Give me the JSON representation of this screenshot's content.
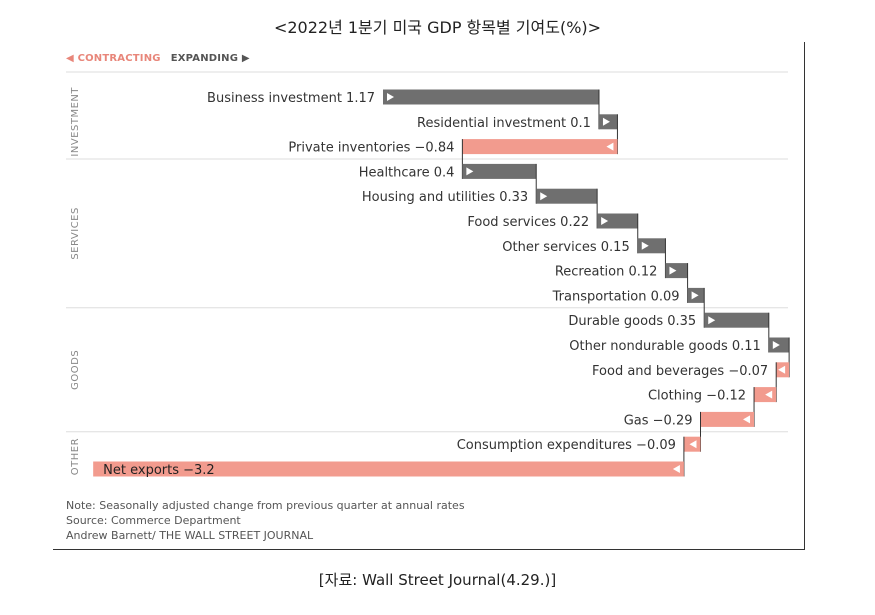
{
  "title": "<2022년 1분기 미국 GDP 항목별 기여도(%)>",
  "legend": {
    "contracting": "◀ CONTRACTING",
    "expanding": "EXPANDING ▶"
  },
  "colors": {
    "positive": "#6f6f6f",
    "negative": "#f29b8e",
    "divider": "#dddddd",
    "text": "#333333",
    "group_label": "#888888"
  },
  "chart_data": {
    "type": "waterfall",
    "title": "<2022년 1분기 미국 GDP 항목별 기여도(%)>",
    "axis_range": [
      -0.6,
      1.5
    ],
    "groups": [
      {
        "name": "INVESTMENT",
        "items": [
          {
            "label": "Business investment 1.17",
            "value": 1.17
          },
          {
            "label": "Residential investment 0.1",
            "value": 0.1
          },
          {
            "label": "Private inventories −0.84",
            "value": -0.84
          }
        ]
      },
      {
        "name": "SERVICES",
        "items": [
          {
            "label": "Healthcare 0.4",
            "value": 0.4
          },
          {
            "label": "Housing and utilities 0.33",
            "value": 0.33
          },
          {
            "label": "Food services 0.22",
            "value": 0.22
          },
          {
            "label": "Other services 0.15",
            "value": 0.15
          },
          {
            "label": "Recreation 0.12",
            "value": 0.12
          },
          {
            "label": "Transportation 0.09",
            "value": 0.09
          }
        ]
      },
      {
        "name": "GOODS",
        "items": [
          {
            "label": "Durable goods 0.35",
            "value": 0.35
          },
          {
            "label": "Other nondurable goods 0.11",
            "value": 0.11
          },
          {
            "label": "Food and beverages −0.07",
            "value": -0.07
          },
          {
            "label": "Clothing −0.12",
            "value": -0.12
          },
          {
            "label": "Gas −0.29",
            "value": -0.29
          }
        ]
      },
      {
        "name": "OTHER",
        "items": [
          {
            "label": "Consumption expenditures −0.09",
            "value": -0.09
          },
          {
            "label": "Net exports −3.2",
            "value": -3.2
          }
        ]
      }
    ]
  },
  "notes": {
    "note": "Note: Seasonally adjusted change from previous quarter at annual rates",
    "source": "Source: Commerce Department",
    "credit": "Andrew Barnett/ THE WALL STREET JOURNAL"
  },
  "caption": "[자료: Wall Street Journal(4.29.)]"
}
